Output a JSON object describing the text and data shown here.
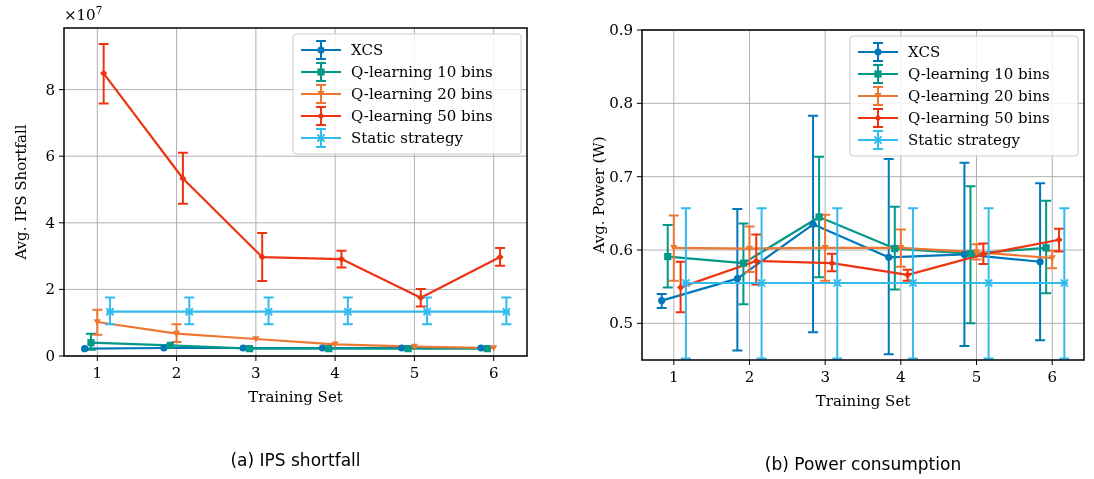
{
  "chart_data": [
    {
      "type": "line",
      "title": "(a) IPS shortfall",
      "xlabel": "Training Set",
      "ylabel": "Avg. IPS Shortfall",
      "annotations": [
        "×10$^{7}$"
      ],
      "xlim": [
        0.58,
        6.42
      ],
      "xticks": [
        1,
        2,
        3,
        4,
        5,
        6
      ],
      "ylim": [
        0,
        9.85
      ],
      "yticks": [
        0,
        2,
        4,
        6,
        8
      ],
      "grid": true,
      "legend": "top right",
      "series": [
        {
          "name": "XCS",
          "color": "#0077bb",
          "marker": "circle",
          "x": [
            0.84,
            1.84,
            2.84,
            3.84,
            4.84,
            5.84
          ],
          "values": [
            0.22,
            0.24,
            0.24,
            0.24,
            0.24,
            0.24
          ],
          "errors": [
            null,
            null,
            null,
            null,
            null,
            null
          ]
        },
        {
          "name": "Q-learning 10 bins",
          "color": "#009988",
          "marker": "square",
          "x": [
            0.92,
            1.92,
            2.92,
            3.92,
            4.92,
            5.92
          ],
          "values": [
            0.4,
            0.32,
            0.22,
            0.22,
            0.22,
            0.22
          ],
          "errors": [
            [
              0.19,
              0.67
            ],
            null,
            null,
            null,
            null,
            null
          ]
        },
        {
          "name": "Q-learning 20 bins",
          "color": "#ee7733",
          "marker": "triangle",
          "x": [
            1,
            2,
            3,
            4,
            5,
            6
          ],
          "values": [
            1.02,
            0.67,
            0.51,
            0.35,
            0.28,
            0.24
          ],
          "errors": [
            [
              0.64,
              1.39
            ],
            [
              0.42,
              0.95
            ],
            null,
            null,
            null,
            null
          ]
        },
        {
          "name": "Q-learning 50 bins",
          "color": "#ee3311",
          "marker": "diamond",
          "x": [
            1.08,
            2.08,
            3.08,
            4.08,
            5.08,
            6.08
          ],
          "values": [
            8.49,
            5.33,
            2.97,
            2.91,
            1.75,
            2.97
          ],
          "errors": [
            [
              7.58,
              9.37
            ],
            [
              4.57,
              6.1
            ],
            [
              2.25,
              3.69
            ],
            [
              2.66,
              3.16
            ],
            [
              1.49,
              2.01
            ],
            [
              2.71,
              3.24
            ]
          ]
        },
        {
          "name": "Static strategy",
          "color": "#33bbee",
          "marker": "cross",
          "x": [
            1.16,
            2.16,
            3.16,
            4.16,
            5.16,
            6.16
          ],
          "values": [
            1.33,
            1.33,
            1.33,
            1.33,
            1.33,
            1.33
          ],
          "errors": [
            [
              0.95,
              1.76
            ],
            [
              0.95,
              1.76
            ],
            [
              0.95,
              1.76
            ],
            [
              0.95,
              1.76
            ],
            [
              0.95,
              1.76
            ],
            [
              0.95,
              1.76
            ]
          ]
        }
      ]
    },
    {
      "type": "line",
      "title": "(b) Power consumption",
      "xlabel": "Training Set",
      "ylabel": "Avg. Power (W)",
      "xlim": [
        0.58,
        6.42
      ],
      "xticks": [
        1,
        2,
        3,
        4,
        5,
        6
      ],
      "ylim": [
        0.45,
        0.9
      ],
      "yticks": [
        0.5,
        0.6,
        0.7,
        0.8,
        0.9
      ],
      "grid": true,
      "legend": "top right",
      "series": [
        {
          "name": "XCS",
          "color": "#0077bb",
          "marker": "circle",
          "x": [
            0.84,
            1.84,
            2.84,
            3.84,
            4.84,
            5.84
          ],
          "values": [
            0.531,
            0.561,
            0.635,
            0.59,
            0.594,
            0.584
          ],
          "errors": [
            [
              0.521,
              0.54
            ],
            [
              0.463,
              0.656
            ],
            [
              0.488,
              0.783
            ],
            [
              0.458,
              0.724
            ],
            [
              0.469,
              0.719
            ],
            [
              0.477,
              0.691
            ]
          ]
        },
        {
          "name": "Q-learning 10 bins",
          "color": "#009988",
          "marker": "square",
          "x": [
            0.92,
            1.92,
            2.92,
            3.92,
            4.92,
            5.92
          ],
          "values": [
            0.591,
            0.582,
            0.645,
            0.602,
            0.595,
            0.603
          ],
          "errors": [
            [
              0.549,
              0.634
            ],
            [
              0.526,
              0.636
            ],
            [
              0.563,
              0.727
            ],
            [
              0.546,
              0.659
            ],
            [
              0.5,
              0.687
            ],
            [
              0.541,
              0.667
            ]
          ]
        },
        {
          "name": "Q-learning 20 bins",
          "color": "#ee7733",
          "marker": "triangle",
          "x": [
            1,
            2,
            3,
            4,
            5,
            6
          ],
          "values": [
            0.603,
            0.602,
            0.603,
            0.603,
            0.597,
            0.589
          ],
          "errors": [
            [
              0.558,
              0.647
            ],
            [
              0.57,
              0.632
            ],
            [
              0.558,
              0.648
            ],
            [
              0.577,
              0.628
            ],
            [
              0.587,
              0.608
            ],
            [
              0.575,
              0.599
            ]
          ]
        },
        {
          "name": "Q-learning 50 bins",
          "color": "#ee3311",
          "marker": "diamond",
          "x": [
            1.09,
            2.09,
            3.09,
            4.09,
            5.09,
            6.09
          ],
          "values": [
            0.549,
            0.585,
            0.582,
            0.566,
            0.594,
            0.614
          ],
          "errors": [
            [
              0.515,
              0.584
            ],
            [
              0.553,
              0.621
            ],
            [
              0.571,
              0.595
            ],
            [
              0.558,
              0.573
            ],
            [
              0.581,
              0.609
            ],
            [
              0.598,
              0.629
            ]
          ]
        },
        {
          "name": "Static strategy",
          "color": "#33bbee",
          "marker": "cross",
          "x": [
            1.16,
            2.16,
            3.16,
            4.16,
            5.16,
            6.16
          ],
          "values": [
            0.555,
            0.555,
            0.555,
            0.555,
            0.555,
            0.555
          ],
          "errors": [
            [
              0.452,
              0.657
            ],
            [
              0.452,
              0.657
            ],
            [
              0.452,
              0.657
            ],
            [
              0.452,
              0.657
            ],
            [
              0.452,
              0.657
            ],
            [
              0.452,
              0.657
            ]
          ]
        }
      ]
    }
  ]
}
